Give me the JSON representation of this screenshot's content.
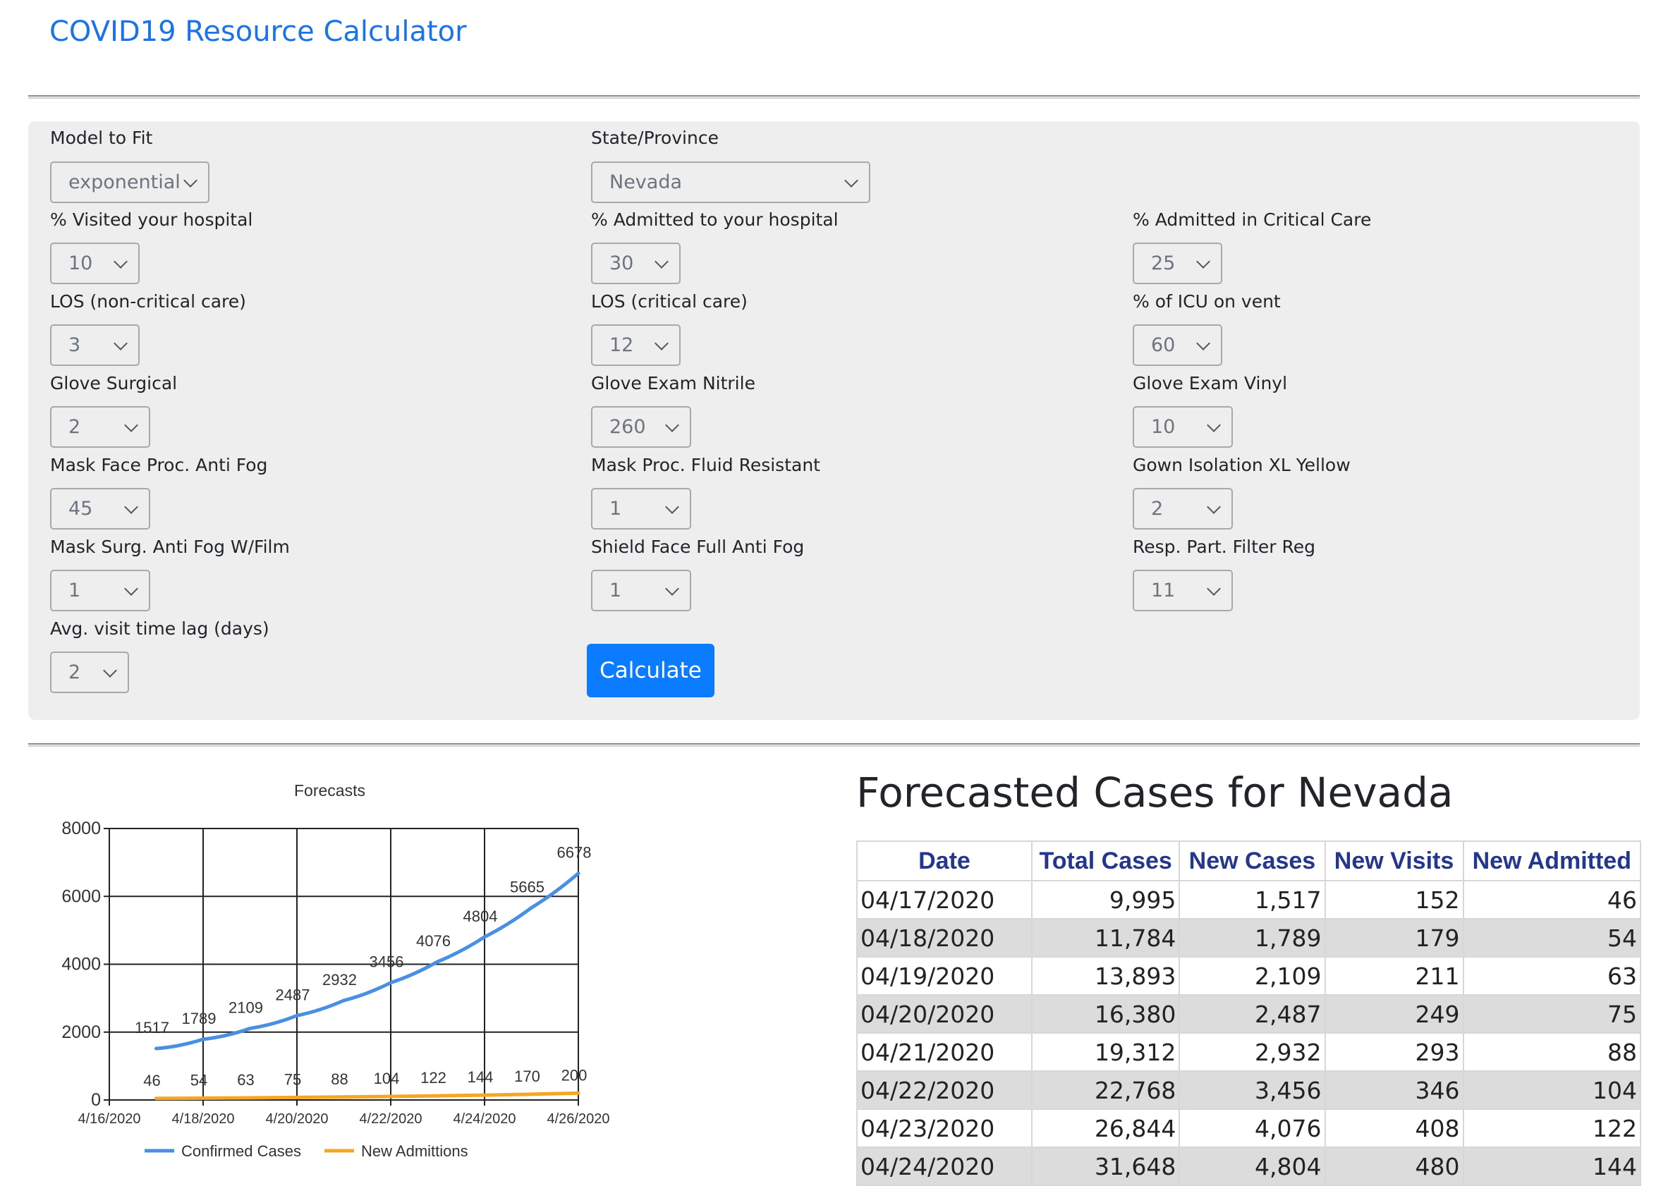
{
  "header": {
    "title": "COVID19 Resource Calculator"
  },
  "form": {
    "model_to_fit": {
      "label": "Model to Fit",
      "value": "exponential"
    },
    "state_province": {
      "label": "State/Province",
      "value": "Nevada"
    },
    "pct_visited": {
      "label": "% Visited your hospital",
      "value": "10"
    },
    "pct_admitted": {
      "label": "% Admitted to your hospital",
      "value": "30"
    },
    "pct_critical": {
      "label": "% Admitted in Critical Care",
      "value": "25"
    },
    "los_noncritical": {
      "label": "LOS (non-critical care)",
      "value": "3"
    },
    "los_critical": {
      "label": "LOS (critical care)",
      "value": "12"
    },
    "pct_icu_vent": {
      "label": "% of ICU on vent",
      "value": "60"
    },
    "glove_surgical": {
      "label": "Glove Surgical",
      "value": "2"
    },
    "glove_nitrile": {
      "label": "Glove Exam Nitrile",
      "value": "260"
    },
    "glove_vinyl": {
      "label": "Glove Exam Vinyl",
      "value": "10"
    },
    "mask_antifog": {
      "label": "Mask Face Proc. Anti Fog",
      "value": "45"
    },
    "mask_fluid": {
      "label": "Mask Proc. Fluid Resistant",
      "value": "1"
    },
    "gown_isolation": {
      "label": "Gown Isolation XL Yellow",
      "value": "2"
    },
    "mask_surg_film": {
      "label": "Mask Surg. Anti Fog W/Film",
      "value": "1"
    },
    "shield_face": {
      "label": "Shield Face Full Anti Fog",
      "value": "1"
    },
    "resp_filter": {
      "label": "Resp. Part. Filter Reg",
      "value": "11"
    },
    "visit_lag": {
      "label": "Avg. visit time lag (days)",
      "value": "2"
    },
    "calculate_label": "Calculate"
  },
  "chart_data": {
    "type": "line",
    "title": "Forecasts",
    "x": [
      "4/17/2020",
      "4/18/2020",
      "4/19/2020",
      "4/20/2020",
      "4/21/2020",
      "4/22/2020",
      "4/23/2020",
      "4/24/2020",
      "4/25/2020",
      "4/26/2020"
    ],
    "x_tick_labels": [
      "4/16/2020",
      "4/18/2020",
      "4/20/2020",
      "4/22/2020",
      "4/24/2020",
      "4/26/2020"
    ],
    "series": [
      {
        "name": "Confirmed Cases",
        "color": "#4a90e2",
        "values": [
          1517,
          1789,
          2109,
          2487,
          2932,
          3456,
          4076,
          4804,
          5665,
          6678
        ]
      },
      {
        "name": "New Admittions",
        "color": "#f5a623",
        "values": [
          46,
          54,
          63,
          75,
          88,
          104,
          122,
          144,
          170,
          200
        ]
      }
    ],
    "ylim": [
      0,
      8000
    ],
    "y_ticks": [
      "0",
      "2000",
      "4000",
      "6000",
      "8000"
    ],
    "grid": true,
    "legend": "bottom"
  },
  "results": {
    "heading": "Forecasted Cases for Nevada",
    "columns": [
      "Date",
      "Total Cases",
      "New Cases",
      "New Visits",
      "New Admitted"
    ],
    "rows": [
      [
        "04/17/2020",
        "9,995",
        "1,517",
        "152",
        "46"
      ],
      [
        "04/18/2020",
        "11,784",
        "1,789",
        "179",
        "54"
      ],
      [
        "04/19/2020",
        "13,893",
        "2,109",
        "211",
        "63"
      ],
      [
        "04/20/2020",
        "16,380",
        "2,487",
        "249",
        "75"
      ],
      [
        "04/21/2020",
        "19,312",
        "2,932",
        "293",
        "88"
      ],
      [
        "04/22/2020",
        "22,768",
        "3,456",
        "346",
        "104"
      ],
      [
        "04/23/2020",
        "26,844",
        "4,076",
        "408",
        "122"
      ],
      [
        "04/24/2020",
        "31,648",
        "4,804",
        "480",
        "144"
      ]
    ]
  }
}
